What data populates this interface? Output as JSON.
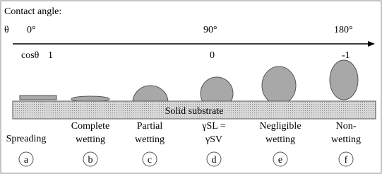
{
  "axis": {
    "title": "Contact angle:",
    "theta_label": "θ",
    "cos_label": "cosθ",
    "angles": [
      "0°",
      "90°",
      "180°"
    ],
    "cos_values": [
      "1",
      "0",
      "-1"
    ]
  },
  "substrate": "Solid substrate",
  "states": [
    {
      "lines": [
        "Spreading"
      ],
      "letter": "a"
    },
    {
      "lines": [
        "Complete",
        "wetting"
      ],
      "letter": "b"
    },
    {
      "lines": [
        "Partial",
        "wetting"
      ],
      "letter": "c"
    },
    {
      "lines": [
        "γSL =",
        "γSV"
      ],
      "letter": "d"
    },
    {
      "lines": [
        "Negligible",
        "wetting"
      ],
      "letter": "e"
    },
    {
      "lines": [
        "Non-",
        "wetting"
      ],
      "letter": "f"
    }
  ]
}
